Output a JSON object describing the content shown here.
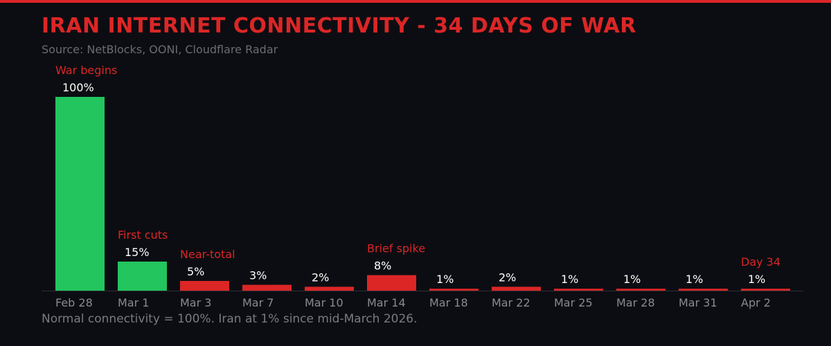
{
  "header": {
    "title": "IRAN INTERNET CONNECTIVITY - 34 DAYS OF WAR",
    "subtitle": "Source: NetBlocks, OONI, Cloudflare Radar"
  },
  "footnote": "Normal connectivity = 100%. Iran at 1% since mid-March 2026.",
  "colors": {
    "accent": "#dc2626",
    "normal": "#22c55e",
    "degraded": "#dc2626",
    "background": "#0c0d12"
  },
  "chart_data": {
    "type": "bar",
    "title": "IRAN INTERNET CONNECTIVITY - 34 DAYS OF WAR",
    "xlabel": "",
    "ylabel": "",
    "ylim": [
      0,
      100
    ],
    "grid": false,
    "categories": [
      "Feb 28",
      "Mar 1",
      "Mar 3",
      "Mar 7",
      "Mar 10",
      "Mar 14",
      "Mar 18",
      "Mar 22",
      "Mar 25",
      "Mar 28",
      "Mar 31",
      "Apr 2"
    ],
    "values": [
      100,
      15,
      5,
      3,
      2,
      8,
      1,
      2,
      1,
      1,
      1,
      1
    ],
    "data_labels": [
      "100%",
      "15%",
      "5%",
      "3%",
      "2%",
      "8%",
      "1%",
      "2%",
      "1%",
      "1%",
      "1%",
      "1%"
    ],
    "bar_colors": [
      "#22c55e",
      "#22c55e",
      "#dc2626",
      "#dc2626",
      "#dc2626",
      "#dc2626",
      "#dc2626",
      "#dc2626",
      "#dc2626",
      "#dc2626",
      "#dc2626",
      "#dc2626"
    ],
    "annotations": [
      {
        "category": "Feb 28",
        "text": "War begins"
      },
      {
        "category": "Mar 1",
        "text": "First cuts"
      },
      {
        "category": "Mar 3",
        "text": "Near-total"
      },
      {
        "category": "Mar 14",
        "text": "Brief spike"
      },
      {
        "category": "Apr 2",
        "text": "Day 34"
      }
    ]
  }
}
